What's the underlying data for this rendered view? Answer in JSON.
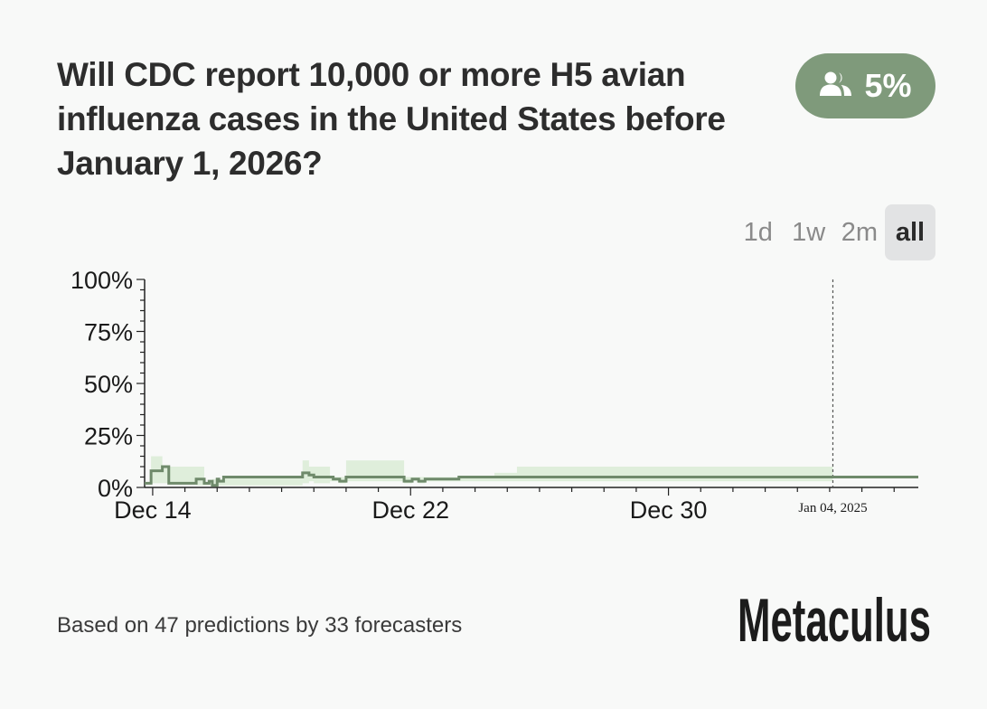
{
  "question": {
    "title": "Will CDC report 10,000 or more H5 avian influenza cases in the United States before January 1, 2026?"
  },
  "badge": {
    "icon": "users-icon",
    "value": "5%",
    "color": "#7f9a7b"
  },
  "time_ranges": [
    {
      "label": "1d",
      "active": false
    },
    {
      "label": "1w",
      "active": false
    },
    {
      "label": "2m",
      "active": false
    },
    {
      "label": "all",
      "active": true
    }
  ],
  "footer": {
    "text": "Based on 47 predictions by 33 forecasters"
  },
  "brand": {
    "name": "Metaculus"
  },
  "colors": {
    "line": "#6f8a6b",
    "band": "#d7e9d2"
  },
  "chart_data": {
    "type": "line",
    "title": "",
    "xlabel": "",
    "ylabel": "",
    "y_ticks": [
      "0%",
      "25%",
      "50%",
      "75%",
      "100%"
    ],
    "ylim": [
      0,
      100
    ],
    "x_tick_labels": [
      {
        "day": 0,
        "label": "Dec 14"
      },
      {
        "day": 8,
        "label": "Dec 22"
      },
      {
        "day": 16,
        "label": "Dec 30"
      }
    ],
    "cursor": {
      "day": 21.1,
      "label": "Jan 04, 2025"
    },
    "xlim": [
      -0.25,
      23.75
    ],
    "series": [
      {
        "values": [
          {
            "day": -0.25,
            "y": 2,
            "lo": 2,
            "hi": 2
          },
          {
            "day": -0.05,
            "y": 8,
            "lo": 2,
            "hi": 15
          },
          {
            "day": 0.3,
            "y": 10,
            "lo": 2,
            "hi": 10
          },
          {
            "day": 0.5,
            "y": 2,
            "lo": 2,
            "hi": 10
          },
          {
            "day": 1.35,
            "y": 4,
            "lo": 1,
            "hi": 10
          },
          {
            "day": 1.6,
            "y": 2,
            "lo": 1,
            "hi": 2
          },
          {
            "day": 1.75,
            "y": 3,
            "lo": 1,
            "hi": 3
          },
          {
            "day": 1.85,
            "y": 1,
            "lo": 1,
            "hi": 4
          },
          {
            "day": 2.0,
            "y": 4,
            "lo": 1,
            "hi": 4
          },
          {
            "day": 2.05,
            "y": 3,
            "lo": 1,
            "hi": 4
          },
          {
            "day": 2.2,
            "y": 5,
            "lo": 1,
            "hi": 5
          },
          {
            "day": 4.6,
            "y": 5,
            "lo": 1,
            "hi": 6
          },
          {
            "day": 4.65,
            "y": 7,
            "lo": 2,
            "hi": 13
          },
          {
            "day": 4.85,
            "y": 6,
            "lo": 3,
            "hi": 10
          },
          {
            "day": 5.0,
            "y": 5,
            "lo": 2,
            "hi": 10
          },
          {
            "day": 5.5,
            "y": 5,
            "lo": 3,
            "hi": 5
          },
          {
            "day": 5.6,
            "y": 4,
            "lo": 3,
            "hi": 5
          },
          {
            "day": 5.8,
            "y": 3,
            "lo": 2,
            "hi": 5
          },
          {
            "day": 6.0,
            "y": 5,
            "lo": 3,
            "hi": 13
          },
          {
            "day": 7.8,
            "y": 3,
            "lo": 2,
            "hi": 5
          },
          {
            "day": 8.05,
            "y": 4,
            "lo": 3,
            "hi": 5
          },
          {
            "day": 8.25,
            "y": 3,
            "lo": 2,
            "hi": 5
          },
          {
            "day": 8.45,
            "y": 4,
            "lo": 3,
            "hi": 5
          },
          {
            "day": 9.5,
            "y": 5,
            "lo": 3,
            "hi": 5
          },
          {
            "day": 10.6,
            "y": 5,
            "lo": 3,
            "hi": 7
          },
          {
            "day": 11.3,
            "y": 5,
            "lo": 3,
            "hi": 10
          },
          {
            "day": 21.1,
            "y": 5,
            "lo": 5,
            "hi": 5
          },
          {
            "day": 23.75,
            "y": 5,
            "lo": 5,
            "hi": 5
          }
        ]
      }
    ]
  }
}
